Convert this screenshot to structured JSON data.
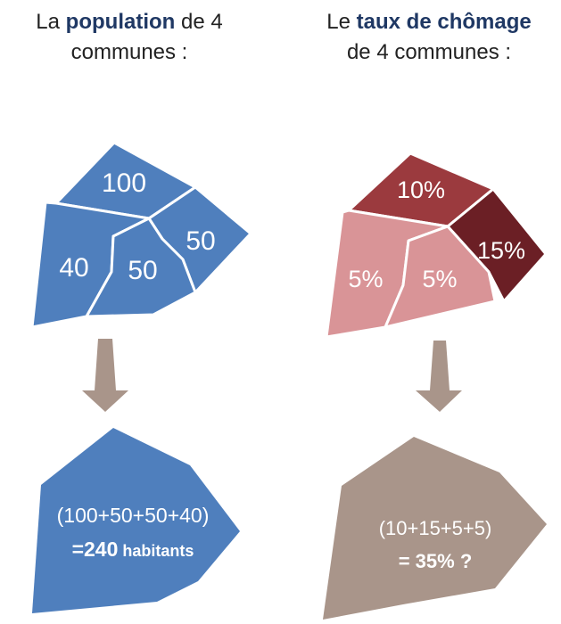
{
  "left_title": {
    "prefix": "La ",
    "bold": "population",
    "suffix_line1": " de 4",
    "line2": "communes :"
  },
  "right_title": {
    "prefix": "Le ",
    "bold": "taux de chômage",
    "line2": "de 4 communes :"
  },
  "population_values": [
    "100",
    "50",
    "40",
    "50"
  ],
  "unemployment_values": [
    "10%",
    "15%",
    "5%",
    "5%"
  ],
  "population_sum": {
    "formula": "(100+50+50+40)",
    "result_prefix": "=240",
    "result_unit": " habitants"
  },
  "unemployment_sum": {
    "formula": "(10+15+5+5)",
    "result": "= 35% ?"
  },
  "colors": {
    "blue": "#4f7fbd",
    "dark_red": "#9b3a3e",
    "darker_red": "#6b1f25",
    "pink": "#d99497",
    "arrow": "#a9958a",
    "title_bold": "#1f3864"
  }
}
